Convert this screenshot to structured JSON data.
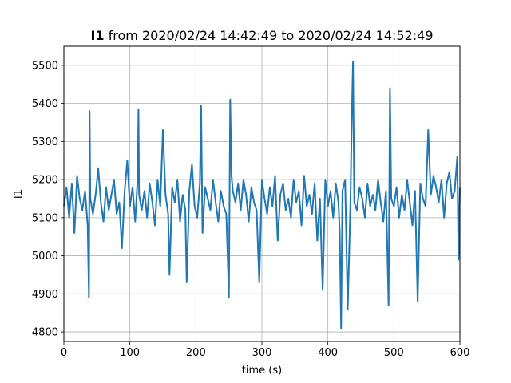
{
  "chart_data": {
    "type": "line",
    "title_var": "I1",
    "title_rest": " from 2020/02/24 14:42:49 to 2020/02/24 14:52:49",
    "xlabel": "time (s)",
    "ylabel": "I1",
    "xlim": [
      0,
      600
    ],
    "ylim": [
      4775,
      5550
    ],
    "xticks": [
      0,
      100,
      200,
      300,
      400,
      500,
      600
    ],
    "yticks": [
      4800,
      4900,
      5000,
      5100,
      5200,
      5300,
      5400,
      5500
    ],
    "grid": true,
    "line_color": "#1f77b4",
    "series": [
      {
        "x": [
          0,
          4,
          8,
          12,
          16,
          20,
          24,
          28,
          32,
          36,
          38,
          39,
          40,
          44,
          48,
          52,
          56,
          60,
          64,
          68,
          72,
          76,
          80,
          84,
          88,
          92,
          96,
          100,
          104,
          108,
          112,
          113,
          114,
          118,
          122,
          126,
          130,
          134,
          138,
          142,
          146,
          150,
          154,
          158,
          160,
          164,
          168,
          172,
          176,
          180,
          184,
          186,
          190,
          194,
          198,
          202,
          206,
          208,
          210,
          214,
          218,
          222,
          226,
          230,
          234,
          238,
          242,
          246,
          248,
          250,
          252,
          254,
          256,
          260,
          264,
          268,
          272,
          276,
          280,
          284,
          288,
          292,
          296,
          300,
          304,
          308,
          312,
          316,
          320,
          324,
          328,
          332,
          336,
          340,
          344,
          348,
          352,
          356,
          360,
          364,
          368,
          372,
          376,
          380,
          384,
          388,
          392,
          396,
          400,
          404,
          408,
          412,
          416,
          418,
          420,
          422,
          426,
          430,
          434,
          436,
          438,
          440,
          444,
          448,
          452,
          456,
          460,
          464,
          468,
          472,
          476,
          480,
          484,
          488,
          492,
          494,
          496,
          500,
          504,
          508,
          512,
          516,
          520,
          524,
          528,
          532,
          536,
          540,
          544,
          548,
          552,
          556,
          560,
          564,
          568,
          572,
          576,
          580,
          584,
          588,
          592,
          596,
          598,
          600
        ],
        "y": [
          5130,
          5180,
          5100,
          5190,
          5060,
          5210,
          5150,
          5120,
          5170,
          5080,
          4890,
          5380,
          5150,
          5110,
          5160,
          5230,
          5140,
          5090,
          5180,
          5120,
          5160,
          5200,
          5110,
          5140,
          5020,
          5170,
          5250,
          5130,
          5180,
          5090,
          5210,
          5385,
          5160,
          5120,
          5170,
          5100,
          5190,
          5140,
          5080,
          5200,
          5130,
          5330,
          5160,
          5110,
          4950,
          5180,
          5140,
          5200,
          5090,
          5160,
          5120,
          4930,
          5170,
          5240,
          5130,
          5100,
          5190,
          5395,
          5060,
          5180,
          5150,
          5120,
          5200,
          5140,
          5090,
          5170,
          5130,
          5110,
          5010,
          4890,
          5410,
          5210,
          5170,
          5140,
          5190,
          5120,
          5200,
          5160,
          5090,
          5180,
          5140,
          5120,
          4930,
          5200,
          5150,
          5110,
          5180,
          5130,
          5210,
          5040,
          5160,
          5190,
          5120,
          5150,
          5100,
          5200,
          5140,
          5170,
          5080,
          5210,
          5130,
          5160,
          5110,
          5190,
          5040,
          5150,
          4910,
          5200,
          5130,
          5170,
          5100,
          5190,
          5140,
          5060,
          4810,
          5170,
          5200,
          4860,
          5130,
          5340,
          5510,
          5140,
          5120,
          5180,
          5150,
          5100,
          5190,
          5130,
          5160,
          5120,
          5200,
          5140,
          5090,
          5170,
          4870,
          5440,
          5150,
          5130,
          5180,
          5100,
          5160,
          5120,
          5200,
          5140,
          5080,
          5170,
          4880,
          5190,
          5150,
          5130,
          5330,
          5160,
          5210,
          5180,
          5140,
          5200,
          5100,
          5190,
          5220,
          5150,
          5170,
          5260,
          4990,
          5180
        ]
      }
    ]
  }
}
